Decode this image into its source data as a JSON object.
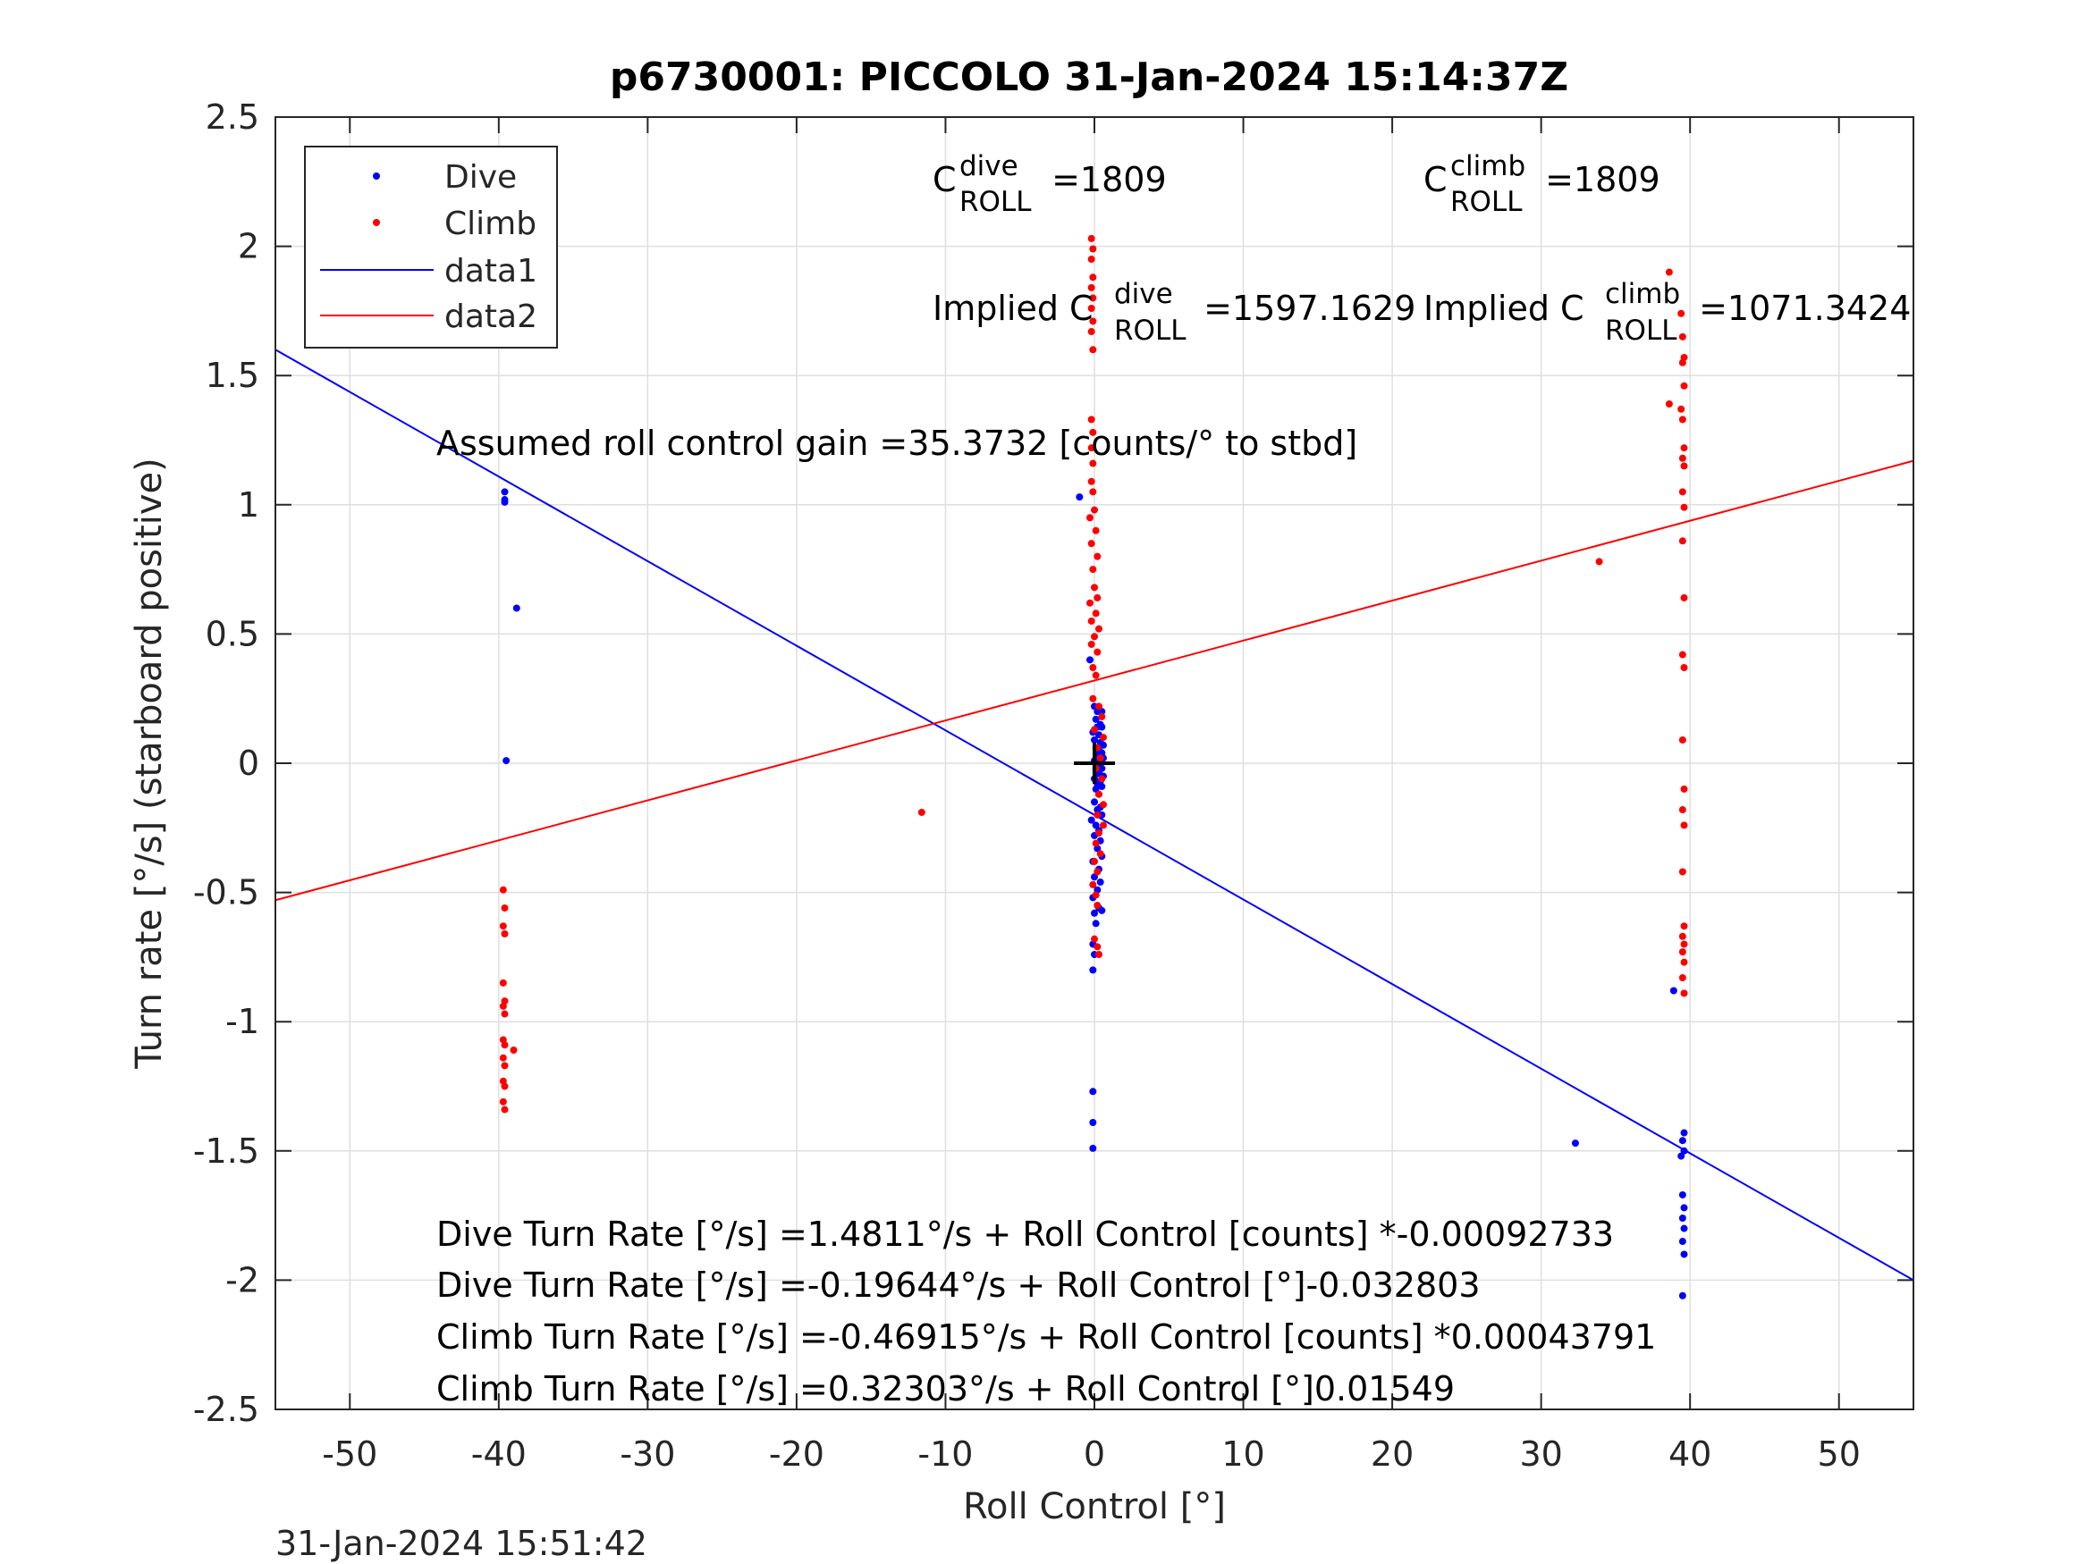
{
  "chart_data": {
    "type": "scatter",
    "title": "p6730001: PICCOLO 31-Jan-2024 15:14:37Z",
    "xlabel": "Roll Control [°]",
    "ylabel": "Turn rate [°/s] (starboard positive)",
    "xlim": [
      -55,
      55
    ],
    "ylim": [
      -2.5,
      2.5
    ],
    "xticks": [
      -50,
      -40,
      -30,
      -20,
      -10,
      0,
      10,
      20,
      30,
      40,
      50
    ],
    "yticks": [
      -2.5,
      -2,
      -1.5,
      -1,
      -0.5,
      0,
      0.5,
      1,
      1.5,
      2,
      2.5
    ],
    "grid": true,
    "legend_position": "top-left",
    "colors": {
      "dive": "#0000ff",
      "climb": "#ff0000",
      "marker": "#000000"
    },
    "series": [
      {
        "name": "Dive",
        "kind": "points",
        "color": "#0000ff",
        "points": [
          [
            -39.6,
            1.05
          ],
          [
            -39.6,
            1.02
          ],
          [
            -39.6,
            1.01
          ],
          [
            -38.8,
            0.6
          ],
          [
            -39.5,
            0.01
          ],
          [
            -1.0,
            1.03
          ],
          [
            -0.3,
            0.4
          ],
          [
            0.0,
            0.22
          ],
          [
            0.2,
            0.2
          ],
          [
            0.5,
            0.2
          ],
          [
            0.1,
            0.17
          ],
          [
            0.4,
            0.15
          ],
          [
            0.2,
            0.14
          ],
          [
            0.5,
            0.14
          ],
          [
            -0.1,
            0.12
          ],
          [
            0.3,
            0.11
          ],
          [
            0.0,
            0.09
          ],
          [
            0.4,
            0.08
          ],
          [
            0.6,
            0.07
          ],
          [
            0.1,
            0.06
          ],
          [
            0.3,
            0.05
          ],
          [
            0.5,
            0.04
          ],
          [
            0.2,
            0.03
          ],
          [
            0.6,
            0.02
          ],
          [
            0.0,
            0.01
          ],
          [
            0.4,
            0.0
          ],
          [
            0.2,
            -0.01
          ],
          [
            0.5,
            -0.02
          ],
          [
            0.1,
            -0.03
          ],
          [
            0.3,
            -0.04
          ],
          [
            0.6,
            -0.05
          ],
          [
            0.0,
            -0.06
          ],
          [
            0.4,
            -0.07
          ],
          [
            0.2,
            -0.08
          ],
          [
            0.5,
            -0.09
          ],
          [
            0.1,
            -0.1
          ],
          [
            0.3,
            -0.12
          ],
          [
            0.0,
            -0.15
          ],
          [
            0.4,
            -0.17
          ],
          [
            0.2,
            -0.18
          ],
          [
            0.5,
            -0.2
          ],
          [
            -0.2,
            -0.22
          ],
          [
            0.1,
            -0.24
          ],
          [
            0.3,
            -0.26
          ],
          [
            0.0,
            -0.28
          ],
          [
            0.4,
            -0.3
          ],
          [
            0.2,
            -0.33
          ],
          [
            0.5,
            -0.36
          ],
          [
            -0.1,
            -0.38
          ],
          [
            0.3,
            -0.41
          ],
          [
            0.0,
            -0.44
          ],
          [
            0.4,
            -0.46
          ],
          [
            0.2,
            -0.49
          ],
          [
            -0.1,
            -0.52
          ],
          [
            0.3,
            -0.56
          ],
          [
            0.0,
            -0.58
          ],
          [
            0.5,
            -0.57
          ],
          [
            0.1,
            -0.62
          ],
          [
            -0.1,
            -0.7
          ],
          [
            0.0,
            -0.74
          ],
          [
            -0.1,
            -0.8
          ],
          [
            -0.1,
            -1.27
          ],
          [
            -0.1,
            -1.39
          ],
          [
            -0.1,
            -1.49
          ],
          [
            32.3,
            -1.47
          ],
          [
            38.9,
            -0.88
          ],
          [
            39.6,
            -1.43
          ],
          [
            39.5,
            -1.46
          ],
          [
            39.6,
            -1.5
          ],
          [
            39.4,
            -1.52
          ],
          [
            39.5,
            -1.67
          ],
          [
            39.6,
            -1.72
          ],
          [
            39.5,
            -1.76
          ],
          [
            39.6,
            -1.8
          ],
          [
            39.5,
            -1.85
          ],
          [
            39.6,
            -1.9
          ],
          [
            39.5,
            -2.06
          ]
        ]
      },
      {
        "name": "Climb",
        "kind": "points",
        "color": "#ff0000",
        "points": [
          [
            -39.7,
            -0.49
          ],
          [
            -39.6,
            -0.56
          ],
          [
            -39.7,
            -0.63
          ],
          [
            -39.6,
            -0.66
          ],
          [
            -39.7,
            -0.85
          ],
          [
            -39.6,
            -0.92
          ],
          [
            -39.7,
            -0.94
          ],
          [
            -39.6,
            -0.97
          ],
          [
            -39.7,
            -1.07
          ],
          [
            -39.6,
            -1.09
          ],
          [
            -39.0,
            -1.11
          ],
          [
            -39.7,
            -1.14
          ],
          [
            -39.6,
            -1.17
          ],
          [
            -39.7,
            -1.23
          ],
          [
            -39.6,
            -1.25
          ],
          [
            -39.7,
            -1.31
          ],
          [
            -39.6,
            -1.34
          ],
          [
            -11.6,
            -0.19
          ],
          [
            33.9,
            0.78
          ],
          [
            38.6,
            1.9
          ],
          [
            39.4,
            1.74
          ],
          [
            39.5,
            1.65
          ],
          [
            39.6,
            1.57
          ],
          [
            39.5,
            1.55
          ],
          [
            39.6,
            1.46
          ],
          [
            38.6,
            1.39
          ],
          [
            39.4,
            1.37
          ],
          [
            39.5,
            1.33
          ],
          [
            39.6,
            1.22
          ],
          [
            39.5,
            1.18
          ],
          [
            39.6,
            1.15
          ],
          [
            39.5,
            1.05
          ],
          [
            39.6,
            0.99
          ],
          [
            39.5,
            0.86
          ],
          [
            39.6,
            0.64
          ],
          [
            39.5,
            0.42
          ],
          [
            39.6,
            0.37
          ],
          [
            39.5,
            0.09
          ],
          [
            39.6,
            -0.1
          ],
          [
            39.5,
            -0.18
          ],
          [
            39.6,
            -0.24
          ],
          [
            39.5,
            -0.42
          ],
          [
            39.6,
            -0.63
          ],
          [
            39.5,
            -0.67
          ],
          [
            39.6,
            -0.7
          ],
          [
            39.5,
            -0.73
          ],
          [
            39.6,
            -0.77
          ],
          [
            39.5,
            -0.83
          ],
          [
            39.6,
            -0.89
          ],
          [
            -0.2,
            2.03
          ],
          [
            -0.1,
            1.99
          ],
          [
            -0.2,
            1.95
          ],
          [
            -0.1,
            1.88
          ],
          [
            -0.2,
            1.84
          ],
          [
            -0.1,
            1.8
          ],
          [
            -0.2,
            1.76
          ],
          [
            -0.1,
            1.71
          ],
          [
            -0.2,
            1.67
          ],
          [
            -0.1,
            1.6
          ],
          [
            -0.2,
            1.33
          ],
          [
            -0.1,
            1.28
          ],
          [
            -0.2,
            1.22
          ],
          [
            -0.1,
            1.16
          ],
          [
            -0.2,
            1.09
          ],
          [
            -0.1,
            1.05
          ],
          [
            0.0,
            0.98
          ],
          [
            -0.3,
            0.95
          ],
          [
            0.1,
            0.9
          ],
          [
            -0.2,
            0.85
          ],
          [
            0.2,
            0.8
          ],
          [
            -0.1,
            0.75
          ],
          [
            0.0,
            0.68
          ],
          [
            0.2,
            0.64
          ],
          [
            -0.3,
            0.62
          ],
          [
            0.1,
            0.58
          ],
          [
            -0.2,
            0.55
          ],
          [
            0.3,
            0.52
          ],
          [
            0.0,
            0.49
          ],
          [
            -0.2,
            0.46
          ],
          [
            0.2,
            0.43
          ],
          [
            -0.1,
            0.37
          ],
          [
            0.1,
            0.34
          ],
          [
            -0.1,
            0.25
          ],
          [
            0.3,
            0.22
          ],
          [
            0.5,
            0.18
          ],
          [
            0.0,
            0.13
          ],
          [
            0.6,
            0.1
          ],
          [
            0.2,
            0.06
          ],
          [
            0.4,
            0.02
          ],
          [
            0.1,
            -0.02
          ],
          [
            0.5,
            -0.06
          ],
          [
            0.3,
            -0.12
          ],
          [
            0.6,
            -0.16
          ],
          [
            0.2,
            -0.2
          ],
          [
            0.6,
            -0.24
          ],
          [
            0.3,
            -0.27
          ],
          [
            0.1,
            -0.31
          ],
          [
            0.4,
            -0.35
          ],
          [
            0.0,
            -0.38
          ],
          [
            0.2,
            -0.42
          ],
          [
            -0.1,
            -0.47
          ],
          [
            0.1,
            -0.51
          ],
          [
            0.2,
            -0.55
          ],
          [
            0.0,
            -0.68
          ],
          [
            0.2,
            -0.71
          ],
          [
            0.3,
            -0.74
          ]
        ]
      },
      {
        "name": "data1",
        "kind": "line",
        "color": "#0000ff",
        "x": [
          -55,
          55
        ],
        "y": [
          1.6,
          -2.0
        ]
      },
      {
        "name": "data2",
        "kind": "line",
        "color": "#ff0000",
        "x": [
          -55,
          55
        ],
        "y": [
          -0.53,
          1.17
        ]
      }
    ],
    "center_marker": [
      0,
      0
    ],
    "annotations": {
      "c_roll_dive": {
        "base": "C",
        "sup": "dive",
        "sub": "ROLL",
        "value": " =1809"
      },
      "c_roll_climb": {
        "base": "C",
        "sup": "climb",
        "sub": "ROLL",
        "value": " =1809"
      },
      "implied_dive": {
        "prefix": "Implied C",
        "sup": "dive",
        "sub": "ROLL",
        "value": " =1597.1629"
      },
      "implied_climb": {
        "prefix": "Implied C",
        "sup": "climb",
        "sub": "ROLL",
        "value": " =1071.3424"
      },
      "gain": "Assumed roll control gain =35.3732 [counts/° to stbd]",
      "equations": [
        "Dive Turn Rate [°/s] =1.4811°/s + Roll Control [counts] *-0.00092733",
        "Dive Turn Rate [°/s] =-0.19644°/s + Roll Control [°]-0.032803",
        "Climb Turn Rate [°/s] =-0.46915°/s + Roll Control [counts] *0.00043791",
        "Climb Turn Rate [°/s] =0.32303°/s + Roll Control [°]0.01549"
      ]
    },
    "timestamp": "31-Jan-2024 15:51:42"
  }
}
